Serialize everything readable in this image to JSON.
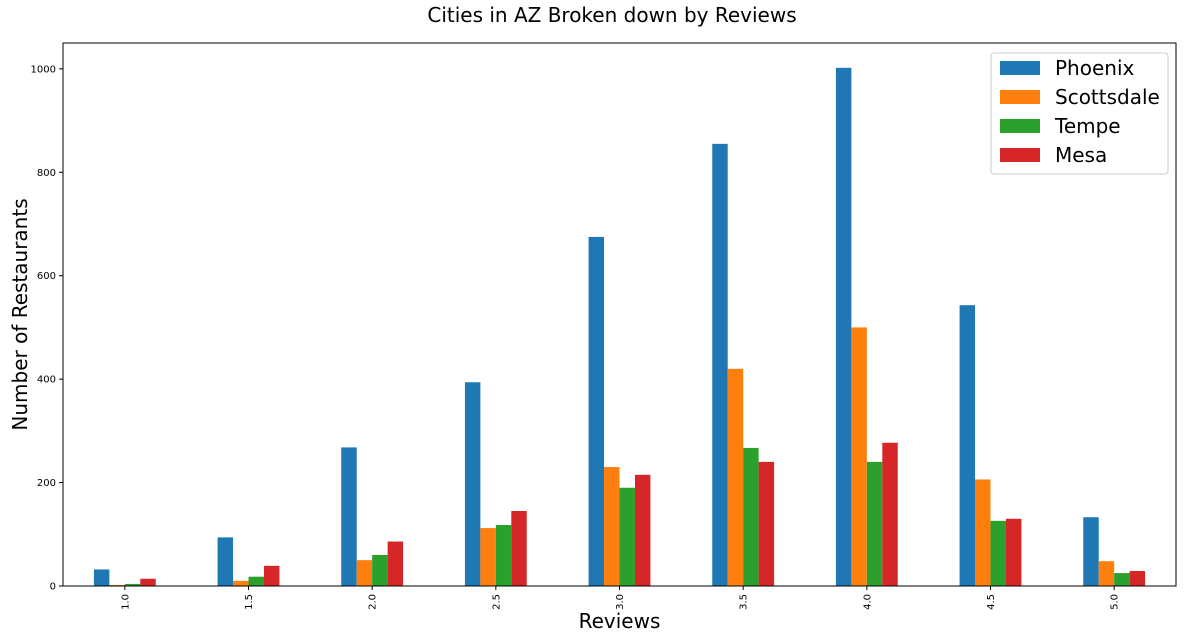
{
  "chart_data": {
    "type": "bar",
    "title": "Cities in AZ Broken down by Reviews",
    "xlabel": "Reviews",
    "ylabel": "Number of Restaurants",
    "categories": [
      "1.0",
      "1.5",
      "2.0",
      "2.5",
      "3.0",
      "3.5",
      "4.0",
      "4.5",
      "5.0"
    ],
    "series": [
      {
        "name": "Phoenix",
        "color": "#1f77b4",
        "values": [
          32,
          94,
          268,
          394,
          675,
          855,
          1002,
          543,
          133
        ]
      },
      {
        "name": "Scottsdale",
        "color": "#ff7f0e",
        "values": [
          2,
          10,
          50,
          112,
          230,
          420,
          500,
          206,
          48
        ]
      },
      {
        "name": "Tempe",
        "color": "#2ca02c",
        "values": [
          4,
          18,
          60,
          118,
          190,
          267,
          240,
          126,
          25
        ]
      },
      {
        "name": "Mesa",
        "color": "#d62728",
        "values": [
          14,
          39,
          86,
          145,
          215,
          240,
          277,
          130,
          29
        ]
      }
    ],
    "ylim": [
      0,
      1050
    ],
    "yticks": [
      "0",
      "200",
      "400",
      "600",
      "800",
      "1000"
    ],
    "grid": false,
    "legend_position": "top-right"
  }
}
